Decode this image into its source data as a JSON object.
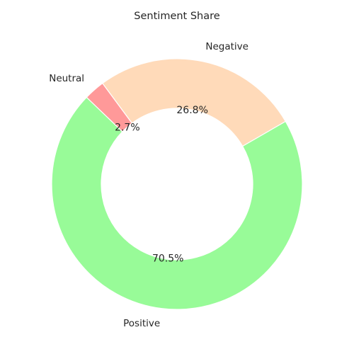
{
  "chart_data": {
    "type": "pie",
    "title": "Sentiment Share",
    "donut": true,
    "slices": [
      {
        "label": "Negative",
        "value": 26.8,
        "pct_label": "26.8%",
        "color": "#ffdab9"
      },
      {
        "label": "Neutral",
        "value": 2.7,
        "pct_label": "2.7%",
        "color": "#ff9999"
      },
      {
        "label": "Positive",
        "value": 70.5,
        "pct_label": "70.5%",
        "color": "#98fb98"
      }
    ]
  }
}
